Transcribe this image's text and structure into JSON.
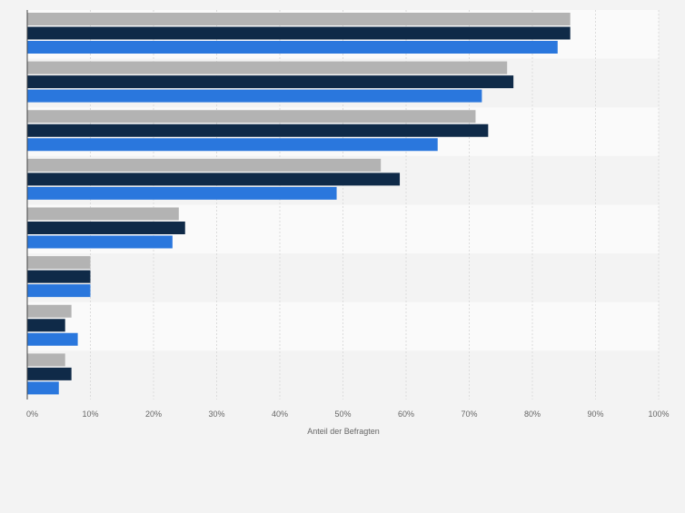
{
  "chart_data": {
    "type": "bar",
    "orientation": "horizontal",
    "categories": [
      "",
      "",
      "",
      "",
      "",
      "",
      "",
      ""
    ],
    "series": [
      {
        "color": "#b3b3b3",
        "values": [
          86,
          76,
          71,
          56,
          24,
          10,
          7,
          6
        ]
      },
      {
        "color": "#0f2a48",
        "values": [
          86,
          77,
          73,
          59,
          25,
          10,
          6,
          7
        ]
      },
      {
        "color": "#2a77dd",
        "values": [
          84,
          72,
          65,
          49,
          23,
          10,
          8,
          5
        ]
      }
    ],
    "xlabel": "Anteil der Befragten",
    "xlim": [
      0,
      100
    ],
    "xticks": [
      "0%",
      "10%",
      "20%",
      "30%",
      "40%",
      "50%",
      "60%",
      "70%",
      "80%",
      "90%",
      "100%"
    ],
    "grid": true,
    "legend": "none"
  }
}
